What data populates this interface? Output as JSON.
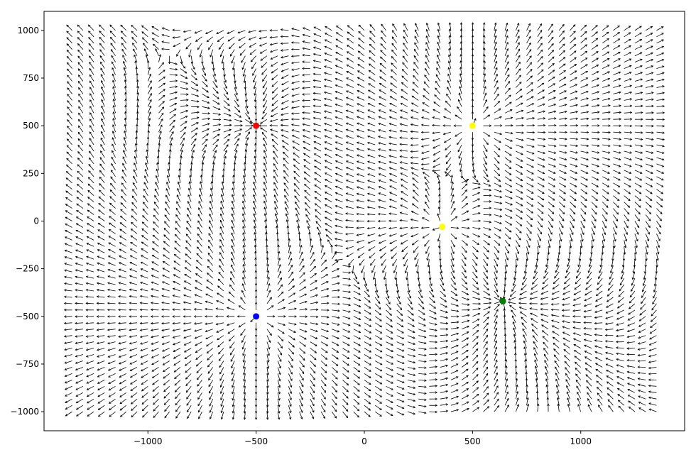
{
  "chart_data": {
    "type": "quiver",
    "title": "",
    "xlabel": "",
    "ylabel": "",
    "xlim": [
      -1480,
      1480
    ],
    "ylim": [
      -1100,
      1100
    ],
    "x_ticks": [
      -1000,
      -500,
      0,
      500,
      1000
    ],
    "y_ticks": [
      -1000,
      -750,
      -500,
      -250,
      0,
      250,
      500,
      750,
      1000
    ],
    "x_tick_labels": [
      "−1000",
      "−500",
      "0",
      "500",
      "1000"
    ],
    "y_tick_labels": [
      "−1000",
      "−750",
      "−500",
      "−250",
      "0",
      "250",
      "500",
      "750",
      "1000"
    ],
    "grid": false,
    "field_grid": {
      "x_range": [
        -1350,
        1350
      ],
      "y_range": [
        -1000,
        1000
      ],
      "nx": 55,
      "ny": 61
    },
    "markers": [
      {
        "x": -500,
        "y": 500,
        "color": "#ff0000",
        "label": "red"
      },
      {
        "x": 500,
        "y": 500,
        "color": "#ffff00",
        "label": "yellow"
      },
      {
        "x": 360,
        "y": -30,
        "color": "#ffff00",
        "label": "yellow"
      },
      {
        "x": -500,
        "y": -500,
        "color": "#0000ff",
        "label": "blue"
      },
      {
        "x": 640,
        "y": -420,
        "color": "#008000",
        "label": "green"
      }
    ],
    "arrow_color": "#000000"
  }
}
